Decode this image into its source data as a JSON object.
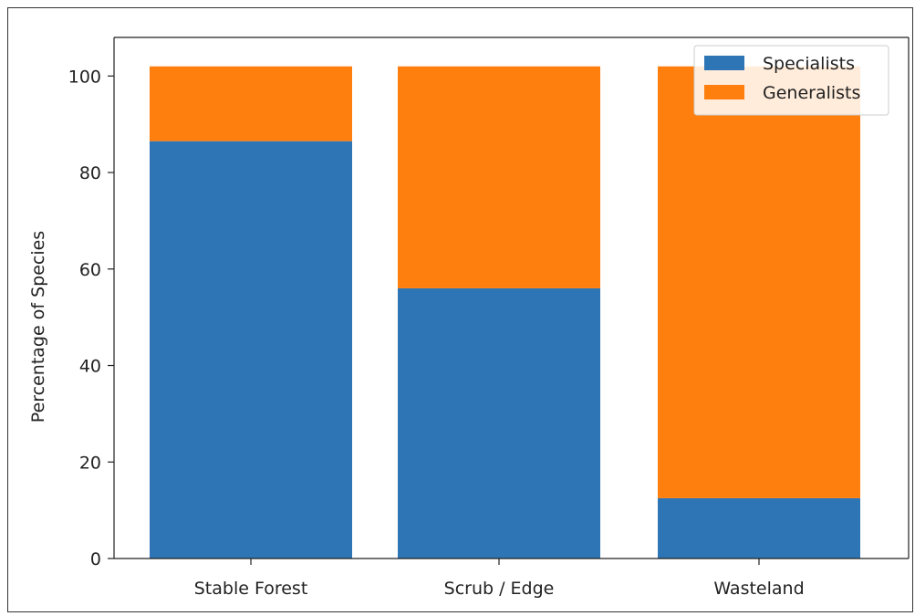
{
  "chart_data": {
    "type": "bar",
    "stacked": true,
    "categories": [
      "Stable Forest",
      "Scrub / Edge",
      "Wasteland"
    ],
    "series": [
      {
        "name": "Specialists",
        "values": [
          86.5,
          56,
          12.5
        ],
        "color": "#2e75b6"
      },
      {
        "name": "Generalists",
        "values": [
          15.5,
          46,
          89.5
        ],
        "color": "#ff7f0e"
      }
    ],
    "ylabel": "Percentage of Species",
    "xlabel": "",
    "ylim": [
      0,
      108
    ],
    "yticks": [
      "0",
      "20",
      "40",
      "60",
      "80",
      "100"
    ],
    "legend": "top-right",
    "grid": false
  }
}
